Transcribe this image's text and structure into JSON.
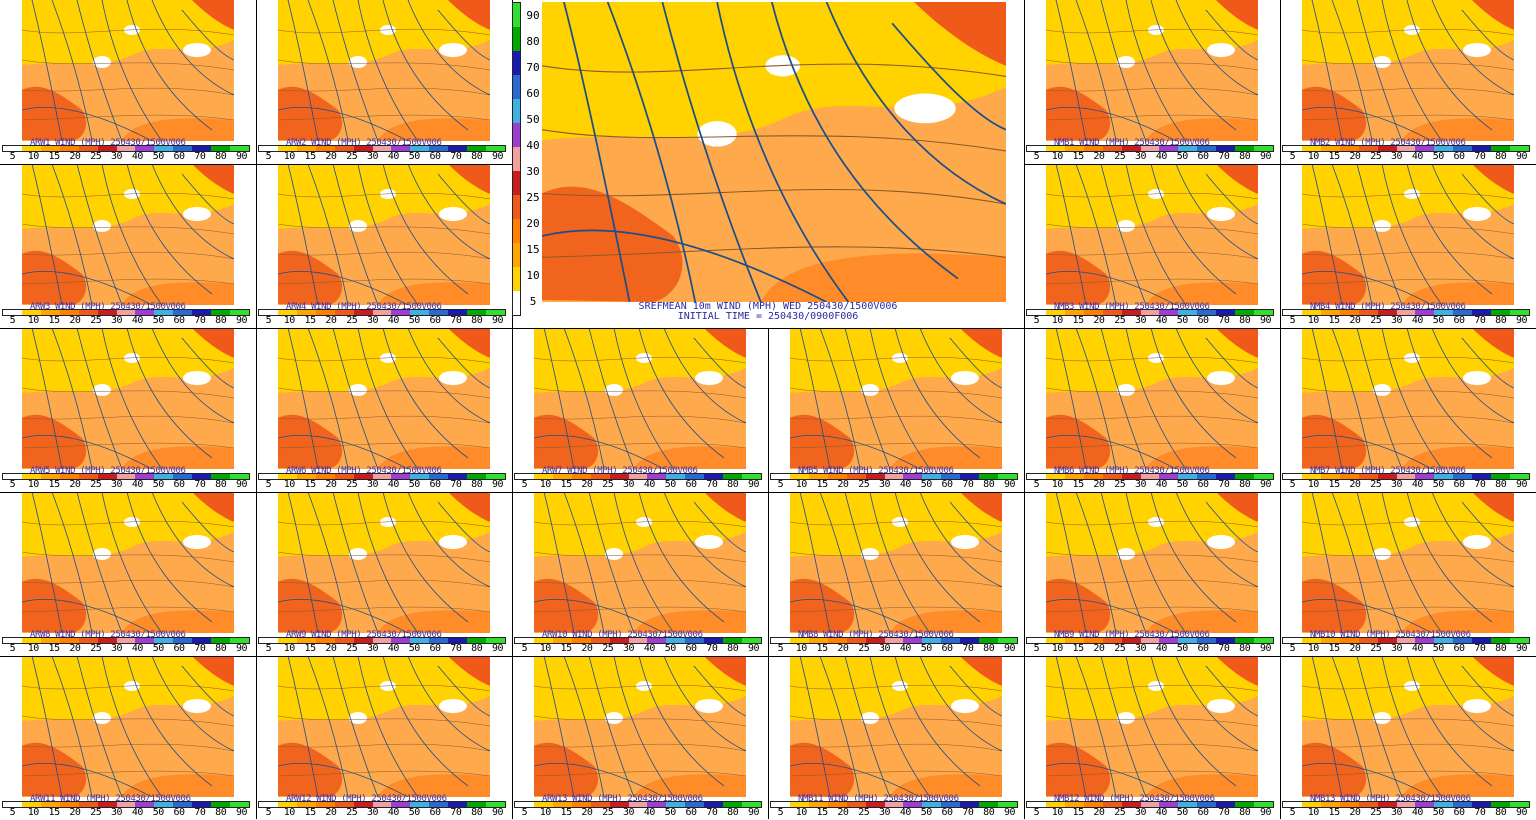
{
  "colorbar": {
    "ticks": [
      "5",
      "10",
      "15",
      "20",
      "25",
      "30",
      "40",
      "50",
      "60",
      "70",
      "80",
      "90"
    ],
    "colors": [
      "#ffffff",
      "#ffd200",
      "#ffa500",
      "#ff7f00",
      "#ef5a1a",
      "#c81e1e",
      "#f0a0a0",
      "#9a3fd0",
      "#3fb0e0",
      "#2a6ad0",
      "#1a1ab0",
      "#00a800",
      "#30e030"
    ]
  },
  "main": {
    "title": "SREFMEAN 10m WIND (MPH) WED 250430/1500V006",
    "subtitle": "INITIAL TIME = 250430/0900F006"
  },
  "panels": [
    {
      "title": "ARW1 WIND (MPH) 250430/1500V006"
    },
    {
      "title": "ARW2 WIND (MPH) 250430/1500V006"
    },
    {
      "title": "NMB1 WIND (MPH) 250430/1500V006"
    },
    {
      "title": "NMB2 WIND (MPH) 250430/1500V006"
    },
    {
      "title": "ARW3 WIND (MPH) 250430/1500V006"
    },
    {
      "title": "ARW4 WIND (MPH) 250430/1500V006"
    },
    {
      "title": "NMB3 WIND (MPH) 250430/1500V006"
    },
    {
      "title": "NMB4 WIND (MPH) 250430/1500V006"
    },
    {
      "title": "ARW5 WIND (MPH) 250430/1500V006"
    },
    {
      "title": "ARW6 WIND (MPH) 250430/1500V006"
    },
    {
      "title": "ARW7 WIND (MPH) 250430/1500V006"
    },
    {
      "title": "NMB5 WIND (MPH) 250430/1500V006"
    },
    {
      "title": "NMB6 WIND (MPH) 250430/1500V006"
    },
    {
      "title": "NMB7 WIND (MPH) 250430/1500V006"
    },
    {
      "title": "ARW8 WIND (MPH) 250430/1500V006"
    },
    {
      "title": "ARW9 WIND (MPH) 250430/1500V006"
    },
    {
      "title": "ARW10 WIND (MPH) 250430/1500V006"
    },
    {
      "title": "NMB8 WIND (MPH) 250430/1500V006"
    },
    {
      "title": "NMB9 WIND (MPH) 250430/1500V006"
    },
    {
      "title": "NMB10 WIND (MPH) 250430/1500V006"
    },
    {
      "title": "ARW11 WIND (MPH) 250430/1500V006"
    },
    {
      "title": "ARW12 WIND (MPH) 250430/1500V006"
    },
    {
      "title": "ARW13 WIND (MPH) 250430/1500V006"
    },
    {
      "title": "NMB11 WIND (MPH) 250430/1500V006"
    },
    {
      "title": "NMB12 WIND (MPH) 250430/1500V006"
    },
    {
      "title": "NMB13 WIND (MPH) 250430/1500V006"
    }
  ]
}
